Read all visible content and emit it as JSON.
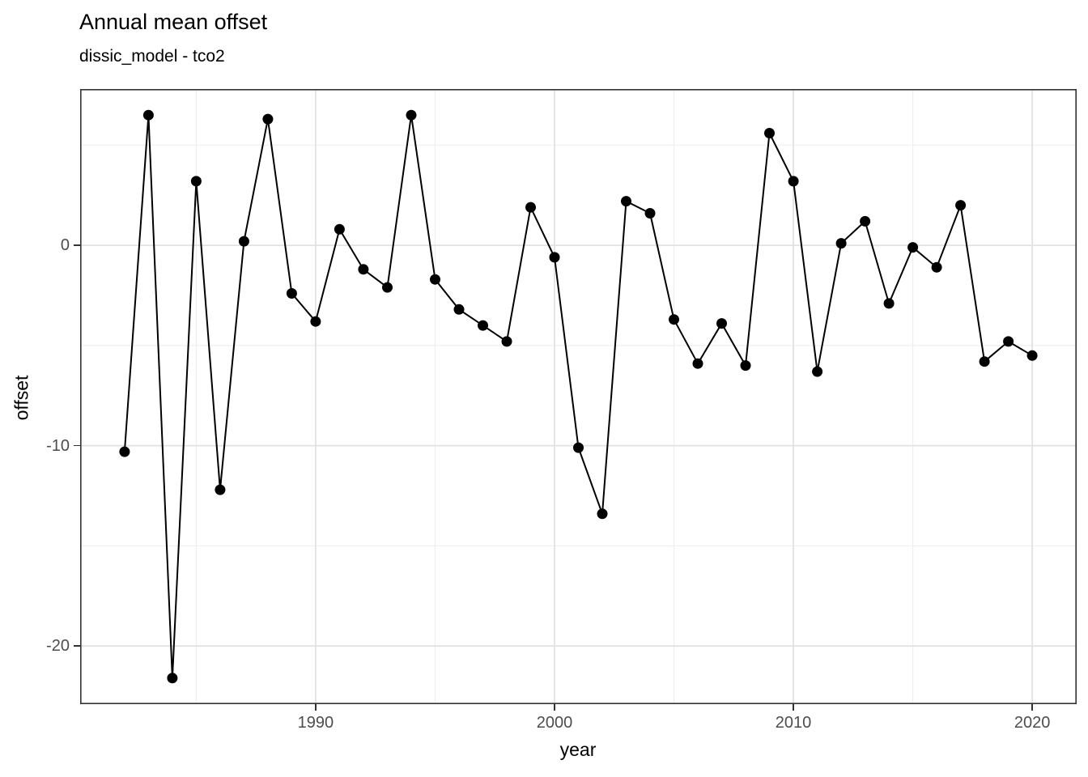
{
  "header": {
    "title": "Annual mean offset",
    "subtitle": "dissic_model - tco2"
  },
  "chart_data": {
    "type": "line",
    "title": "Annual mean offset",
    "subtitle": "dissic_model - tco2",
    "xlabel": "year",
    "ylabel": "offset",
    "x": [
      1982,
      1983,
      1984,
      1985,
      1986,
      1987,
      1988,
      1989,
      1990,
      1991,
      1992,
      1993,
      1994,
      1995,
      1996,
      1997,
      1998,
      1999,
      2000,
      2001,
      2002,
      2003,
      2004,
      2005,
      2006,
      2007,
      2008,
      2009,
      2010,
      2011,
      2012,
      2013,
      2014,
      2015,
      2016,
      2017,
      2018,
      2019,
      2020
    ],
    "series": [
      {
        "name": "offset",
        "values": [
          -10.3,
          6.5,
          -21.6,
          3.2,
          -12.2,
          0.2,
          6.3,
          -2.4,
          -3.8,
          0.8,
          -1.2,
          -2.1,
          6.5,
          -1.7,
          -3.2,
          -4.0,
          -4.8,
          1.9,
          -0.6,
          -10.1,
          -13.4,
          2.2,
          1.6,
          -3.7,
          -5.9,
          -3.9,
          -6.0,
          5.6,
          3.2,
          -6.3,
          0.1,
          1.2,
          -2.9,
          -0.1,
          -1.1,
          2.0,
          -5.8,
          -4.8,
          -5.5
        ]
      }
    ],
    "xlim": [
      1980.14,
      2021.86
    ],
    "ylim": [
      -22.9,
      7.8
    ],
    "x_major_ticks": [
      1990,
      2000,
      2010,
      2020
    ],
    "x_minor_ticks": [
      1985,
      1995,
      2005,
      2015
    ],
    "y_major_ticks": [
      0,
      -10,
      -20
    ],
    "y_minor_ticks": [
      5,
      -5,
      -15
    ],
    "grid": true,
    "legend": "none",
    "marker_radius": 6.5,
    "line_width": 2,
    "colors": {
      "line": "#000000",
      "point": "#000000",
      "panel_border": "#333333",
      "grid_major": "#e2e2e2",
      "grid_minor": "#efefef",
      "axis_text": "#4d4d4d",
      "tick_mark": "#333333",
      "title_text": "#000000",
      "background": "#ffffff"
    }
  }
}
